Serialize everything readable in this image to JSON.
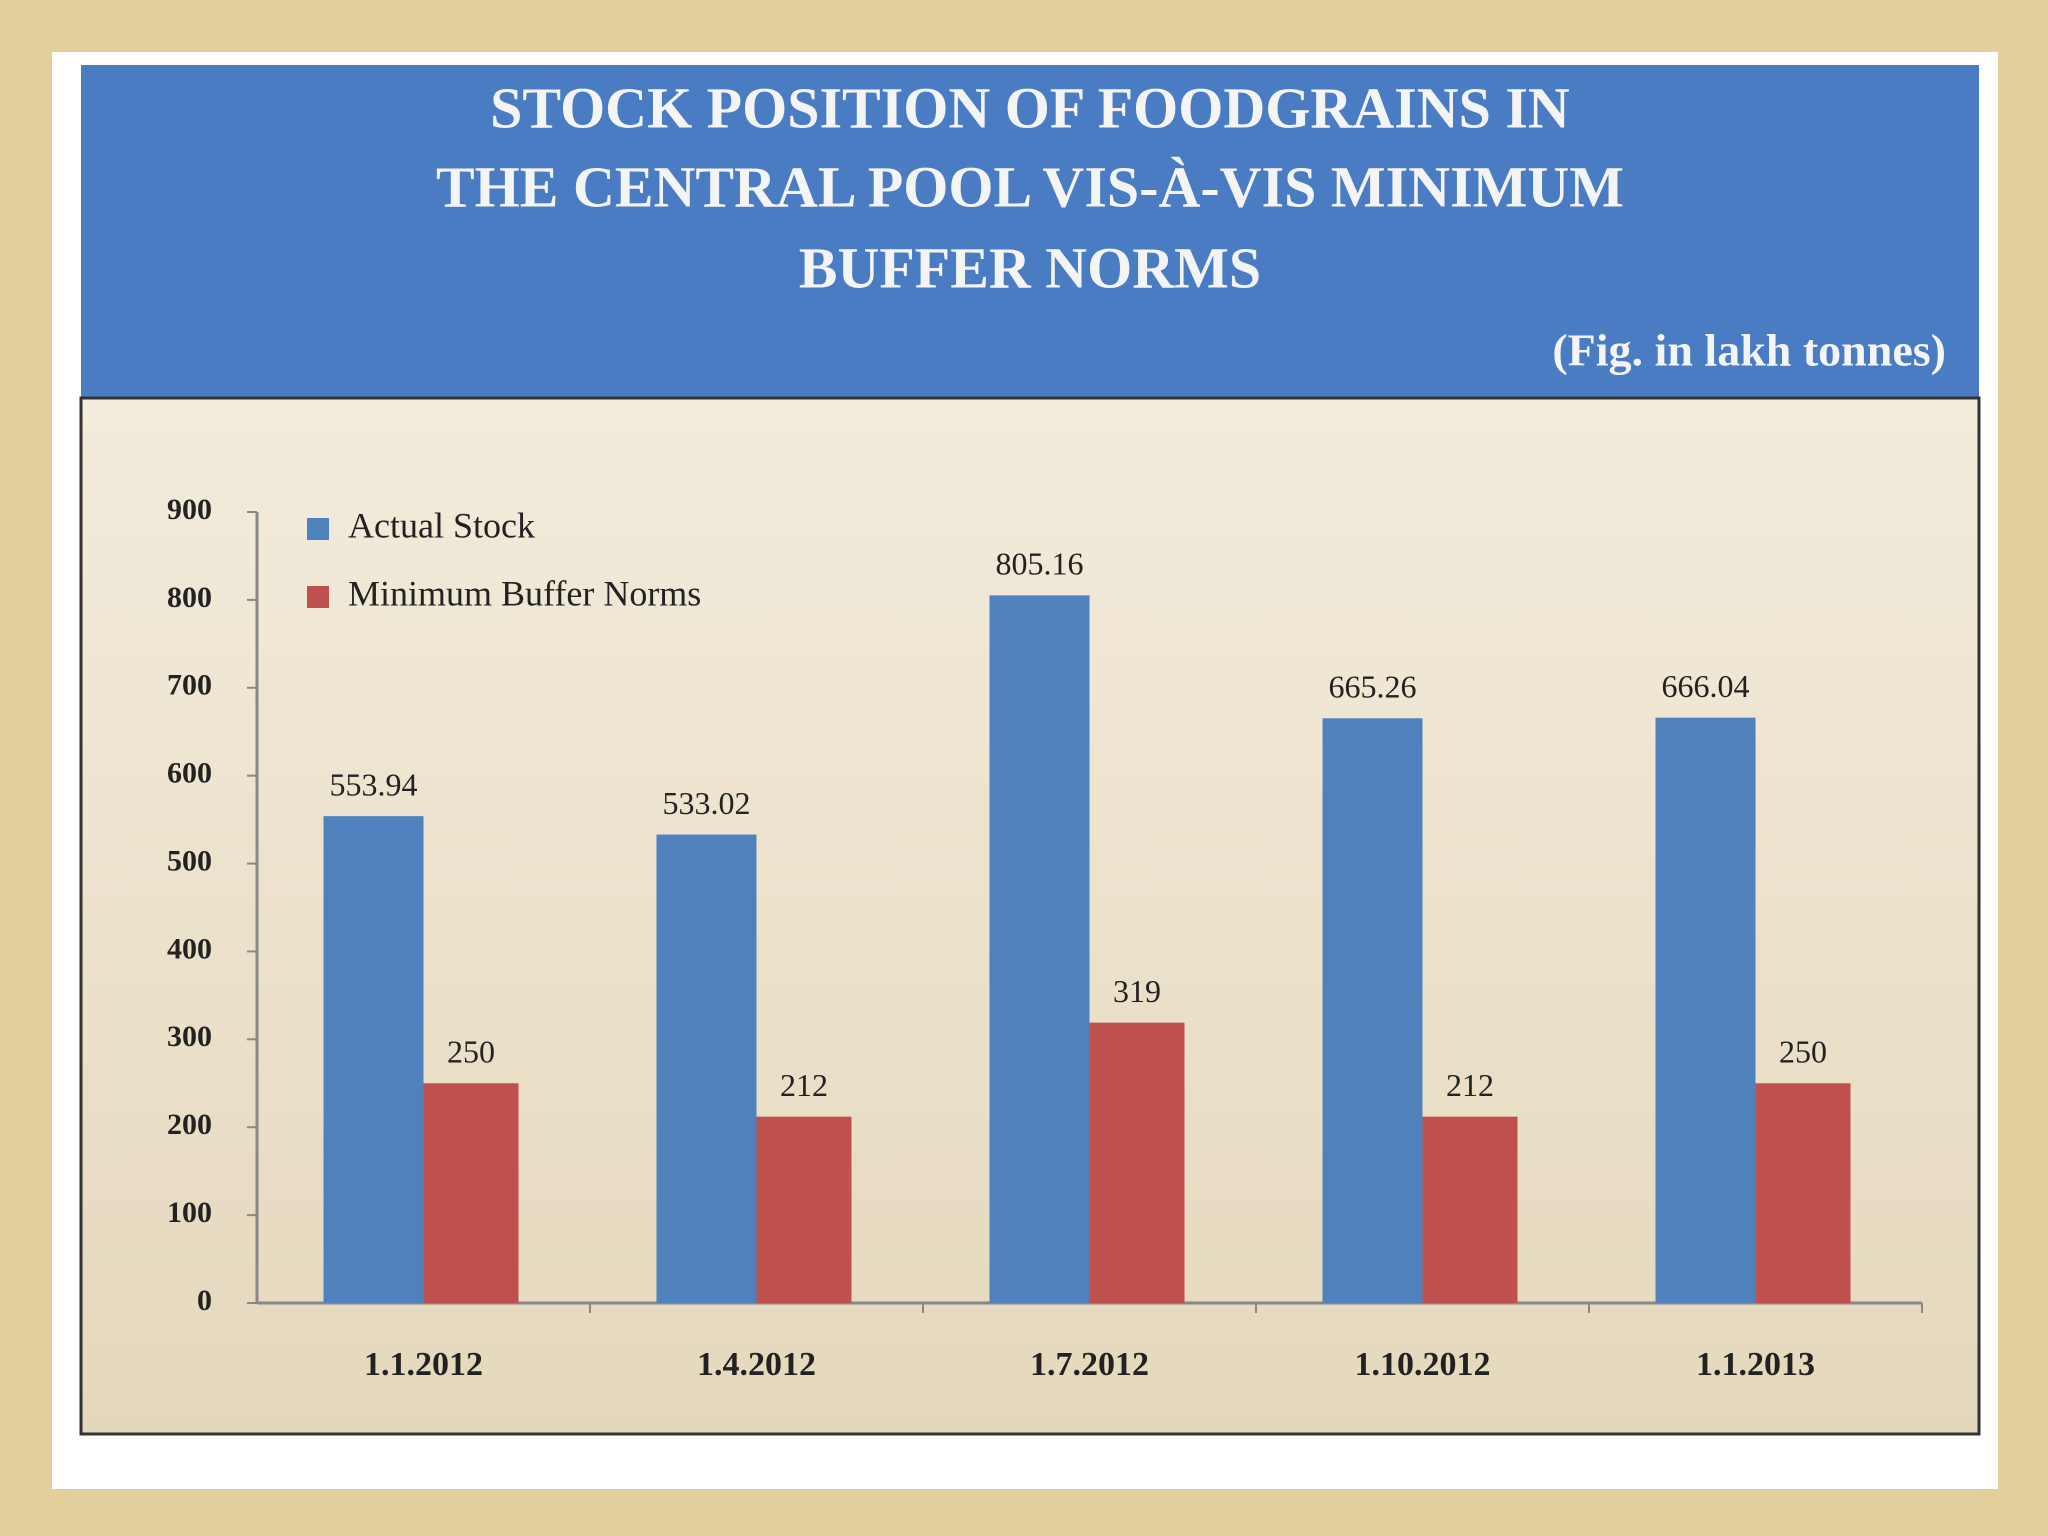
{
  "chart_data": {
    "type": "bar",
    "title": [
      "STOCK POSITION OF FOODGRAINS IN",
      "THE CENTRAL POOL VIS-À-VIS MINIMUM",
      "BUFFER NORMS"
    ],
    "subtitle": "(Fig. in lakh tonnes)",
    "categories": [
      "1.1.2012",
      "1.4.2012",
      "1.7.2012",
      "1.10.2012",
      "1.1.2013"
    ],
    "series": [
      {
        "name": "Actual Stock",
        "color": "#4f81bd",
        "values": [
          553.94,
          533.02,
          805.16,
          665.26,
          666.04
        ]
      },
      {
        "name": "Minimum Buffer Norms",
        "color": "#c0504d",
        "values": [
          250,
          212,
          319,
          212,
          250
        ]
      }
    ],
    "ylim": [
      0,
      900
    ],
    "yticks": [
      0,
      100,
      200,
      300,
      400,
      500,
      600,
      700,
      800,
      900
    ],
    "grid": false,
    "legend": "top-left"
  }
}
